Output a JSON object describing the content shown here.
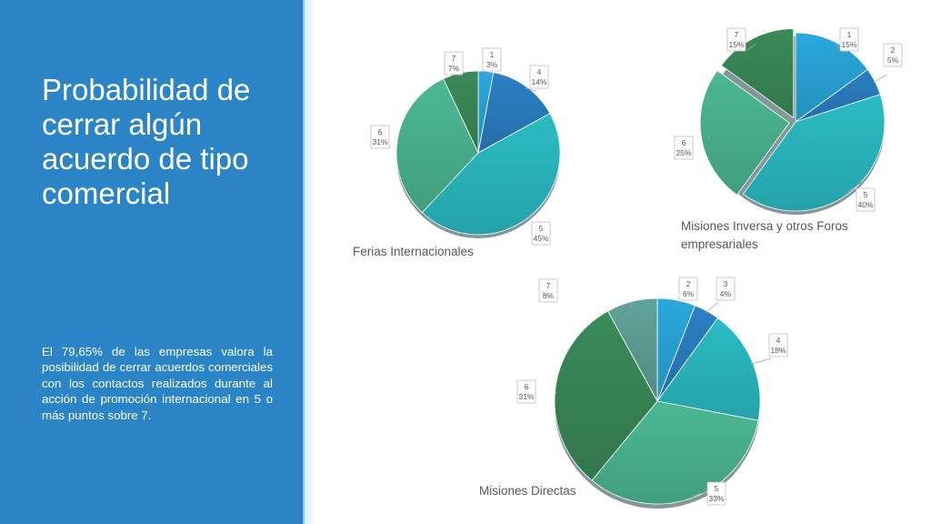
{
  "slide": {
    "title": "Probabilidad de cerrar algún acuerdo de tipo comercial",
    "body": "El 79,65% de las empresas valora la posibilidad de cerrar acuerdos comerciales con los contactos realizados durante al acción de promoción internacional en 5 o más puntos sobre 7."
  },
  "chart_data": [
    {
      "type": "pie",
      "title": "Ferias Internacionales",
      "categories": [
        "1",
        "4",
        "5",
        "6",
        "7"
      ],
      "values": [
        3,
        14,
        45,
        31,
        7
      ],
      "labels": [
        "3%",
        "14%",
        "45%",
        "31%",
        "7%"
      ],
      "colors": [
        "#2aa8dc",
        "#2b7fc4",
        "#2bbcc4",
        "#4bb894",
        "#3a8a58"
      ]
    },
    {
      "type": "pie",
      "title": "Misiones Inversa y otros Foros empresariales",
      "categories": [
        "1",
        "2",
        "5",
        "6",
        "7"
      ],
      "values": [
        15,
        5,
        40,
        25,
        15
      ],
      "labels": [
        "15%",
        "5%",
        "40%",
        "25%",
        "15%"
      ],
      "colors": [
        "#2aa8dc",
        "#2b7fc4",
        "#2bbcc4",
        "#4bb894",
        "#3a8a58"
      ]
    },
    {
      "type": "pie",
      "title": "Misiones Directas",
      "categories": [
        "2",
        "3",
        "4",
        "5",
        "6",
        "7"
      ],
      "values": [
        6,
        4,
        18,
        33,
        31,
        8
      ],
      "labels": [
        "6%",
        "4%",
        "18%",
        "33%",
        "31%",
        "8%"
      ],
      "colors": [
        "#2aa8dc",
        "#2b7fc4",
        "#2bbcc4",
        "#4bb894",
        "#3a8a58",
        "#5fa39a"
      ]
    }
  ]
}
